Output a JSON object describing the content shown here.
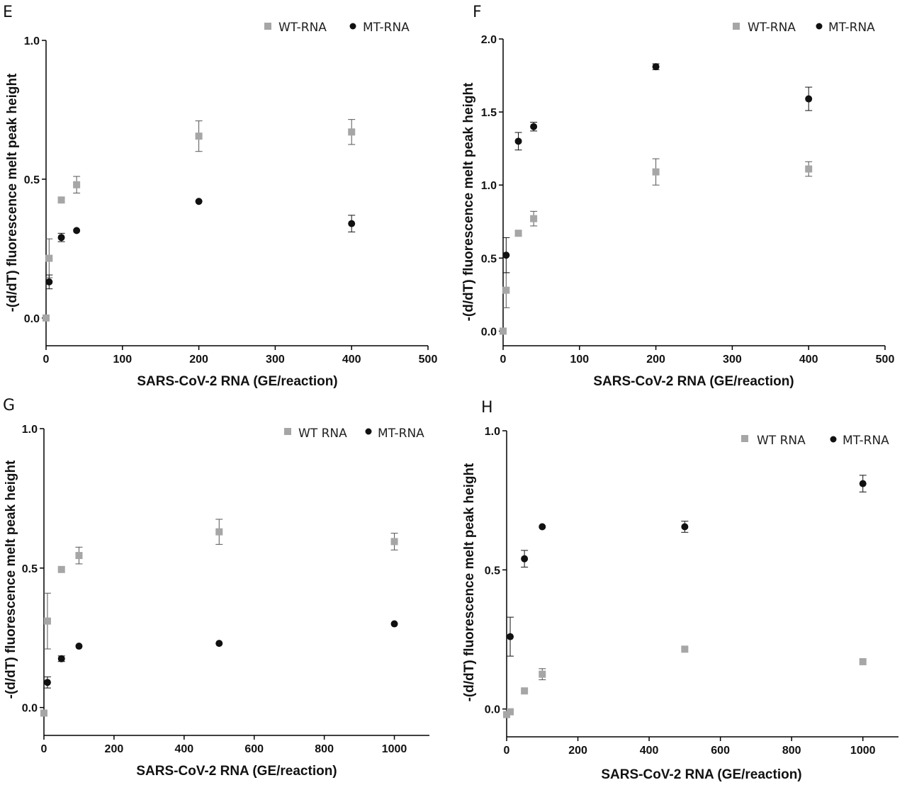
{
  "colors": {
    "wt": "#a6a6a6",
    "mt": "#111111",
    "axis": "#000000"
  },
  "chart_data": [
    {
      "panel": "E",
      "type": "scatter",
      "xlabel": "SARS-CoV-2 RNA (GE/reaction)",
      "ylabel": "-(d/dT) fluorescence melt peak height",
      "xlim": [
        0,
        500
      ],
      "ylim": [
        -0.1,
        1.0
      ],
      "xticks": [
        0,
        100,
        200,
        300,
        400,
        500
      ],
      "xtick_labels": [
        "0",
        "100",
        "200",
        "300",
        "400",
        "500"
      ],
      "yticks": [
        0.0,
        0.5,
        1.0
      ],
      "ytick_labels": [
        "0.0",
        "0.5",
        "1.0"
      ],
      "legend_position": "top-right",
      "series": [
        {
          "name": "WT-RNA",
          "marker": "square",
          "color_key": "wt",
          "x": [
            0,
            4,
            20,
            40,
            200,
            400
          ],
          "y": [
            0.0,
            0.215,
            0.425,
            0.48,
            0.655,
            0.67
          ],
          "err": [
            0,
            0.07,
            0,
            0.03,
            0.055,
            0.045
          ]
        },
        {
          "name": "MT-RNA",
          "marker": "circle",
          "color_key": "mt",
          "x": [
            4,
            20,
            40,
            200,
            400
          ],
          "y": [
            0.13,
            0.29,
            0.315,
            0.42,
            0.34
          ],
          "err": [
            0.025,
            0.015,
            0,
            0,
            0.03
          ]
        }
      ]
    },
    {
      "panel": "F",
      "type": "scatter",
      "xlabel": "SARS-CoV-2 RNA (GE/reaction)",
      "ylabel": "-(d/dT) fluorescence melt peak height",
      "xlim": [
        0,
        500
      ],
      "ylim": [
        -0.1,
        2.0
      ],
      "xticks": [
        0,
        100,
        200,
        300,
        400,
        500
      ],
      "xtick_labels": [
        "0",
        "100",
        "200",
        "300",
        "400",
        "500"
      ],
      "yticks": [
        0.0,
        0.5,
        1.0,
        1.5,
        2.0
      ],
      "ytick_labels": [
        "0.0",
        "0.5",
        "1.0",
        "1.5",
        "2.0"
      ],
      "legend_position": "top-right",
      "series": [
        {
          "name": "WT-RNA",
          "marker": "square",
          "color_key": "wt",
          "x": [
            0,
            4,
            20,
            40,
            200,
            400
          ],
          "y": [
            0.0,
            0.28,
            0.67,
            0.77,
            1.09,
            1.11
          ],
          "err": [
            0,
            0.12,
            0.02,
            0.05,
            0.09,
            0.05
          ]
        },
        {
          "name": "MT-RNA",
          "marker": "circle",
          "color_key": "mt",
          "x": [
            4,
            20,
            40,
            200,
            400
          ],
          "y": [
            0.52,
            1.3,
            1.4,
            1.81,
            1.59
          ],
          "err": [
            0.12,
            0.06,
            0.03,
            0.02,
            0.08
          ]
        }
      ]
    },
    {
      "panel": "G",
      "type": "scatter",
      "xlabel": "SARS-CoV-2 RNA (GE/reaction)",
      "ylabel": "-(d/dT) fluorescence melt peak height",
      "xlim": [
        0,
        1100
      ],
      "ylim": [
        -0.1,
        1.0
      ],
      "xticks": [
        0,
        200,
        400,
        600,
        800,
        1000
      ],
      "xtick_labels": [
        "0",
        "200",
        "400",
        "600",
        "800",
        "1000"
      ],
      "yticks": [
        0.0,
        0.5,
        1.0
      ],
      "ytick_labels": [
        "0.0",
        "0.5",
        "1.0"
      ],
      "legend_position": "top-right",
      "series": [
        {
          "name": "WT RNA",
          "marker": "square",
          "color_key": "wt",
          "x": [
            0,
            10,
            50,
            100,
            500,
            1000
          ],
          "y": [
            -0.02,
            0.31,
            0.495,
            0.545,
            0.63,
            0.595
          ],
          "err": [
            0,
            0.1,
            0,
            0.03,
            0.045,
            0.03
          ]
        },
        {
          "name": "MT-RNA",
          "marker": "circle",
          "color_key": "mt",
          "x": [
            10,
            50,
            100,
            500,
            1000
          ],
          "y": [
            0.09,
            0.175,
            0.22,
            0.23,
            0.3
          ],
          "err": [
            0.02,
            0.01,
            0,
            0,
            0
          ]
        }
      ]
    },
    {
      "panel": "H",
      "type": "scatter",
      "xlabel": "SARS-CoV-2 RNA (GE/reaction)",
      "ylabel": "-(d/dT) fluorescence melt peak height",
      "xlim": [
        0,
        1100
      ],
      "ylim": [
        -0.1,
        1.0
      ],
      "xticks": [
        0,
        200,
        400,
        600,
        800,
        1000
      ],
      "xtick_labels": [
        "0",
        "200",
        "400",
        "600",
        "800",
        "1000"
      ],
      "yticks": [
        0.0,
        0.5,
        1.0
      ],
      "ytick_labels": [
        "0.0",
        "0.5",
        "1.0"
      ],
      "legend_position": "top-right",
      "series": [
        {
          "name": "WT RNA",
          "marker": "square",
          "color_key": "wt",
          "x": [
            0,
            10,
            50,
            100,
            500,
            1000
          ],
          "y": [
            -0.02,
            -0.01,
            0.065,
            0.125,
            0.215,
            0.17
          ],
          "err": [
            0,
            0,
            0,
            0.02,
            0,
            0
          ]
        },
        {
          "name": "MT-RNA",
          "marker": "circle",
          "color_key": "mt",
          "x": [
            10,
            50,
            100,
            500,
            1000
          ],
          "y": [
            0.26,
            0.54,
            0.655,
            0.655,
            0.81
          ],
          "err": [
            0.07,
            0.03,
            0,
            0.02,
            0.03
          ]
        }
      ]
    }
  ]
}
